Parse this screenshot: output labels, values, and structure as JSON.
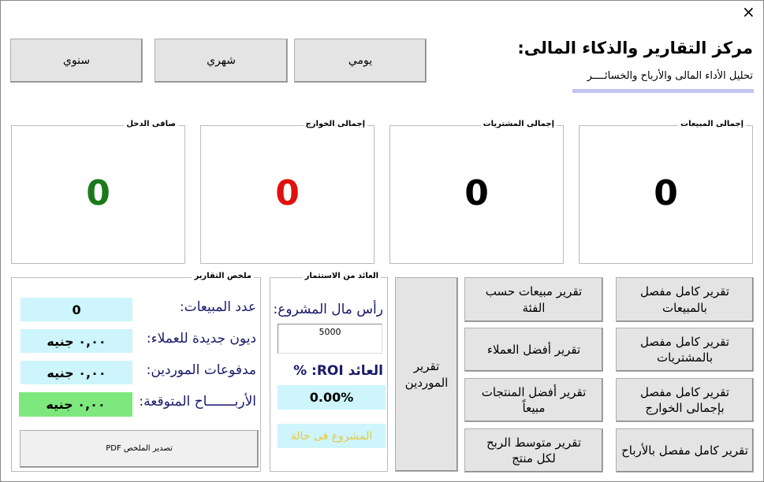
{
  "header": {
    "title": "مركز التقارير والذكاء المالى:",
    "subtitle": "تحليل الأداء المالى والأرباح والخسائــــر",
    "close": "×"
  },
  "period_buttons": [
    "سنوي",
    "شهري",
    "يومي"
  ],
  "cards": [
    {
      "label": "صافى الدخل",
      "value": "0",
      "color": "#1a7a1a"
    },
    {
      "label": "إجمالى الخوارج",
      "value": "0",
      "color": "#e01010"
    },
    {
      "label": "إجمالى المشتريات",
      "value": "0",
      "color": "#000000"
    },
    {
      "label": "إجمالى المبيعات",
      "value": "0",
      "color": "#000000"
    }
  ],
  "summary": {
    "legend": "ملخص التقارير",
    "rows": [
      {
        "label": "عدد المبيعات:",
        "value": "0"
      },
      {
        "label": "ديون جديدة للعملاء:",
        "value": "٠,٠٠ جنيه"
      },
      {
        "label": "مدفوعات الموردين:",
        "value": "٠,٠٠ جنيه"
      },
      {
        "label": "الأربـــــــاح المتوقعة:",
        "value": "٠,٠٠ جنيه"
      }
    ],
    "export": "تصدير الملخص PDF"
  },
  "roi": {
    "legend": "العائد من الاستثمار",
    "capital_label": "رأس مال المشروع:",
    "capital_value": "5000",
    "roi_label": "العائد ROI: %",
    "roi_value": "0.00%",
    "status": "المشروع فى حالة"
  },
  "reports": {
    "suppliers": "تقرير الموردين",
    "middle": [
      "تقرير مبيعات حسب الفئة",
      "تقرير أفضل العملاء",
      "تقرير أفضل المنتجات مبيعاً",
      "تقرير متوسط الربح لكل منتج"
    ],
    "right": [
      "تقرير كامل مفصل بالمبيعات",
      "تقرير كامل مفصل بالمشتريات",
      "تقرير كامل مفصل بإجمالى الخوارج",
      "تقرير كامل مفصل بالأرباح"
    ]
  }
}
